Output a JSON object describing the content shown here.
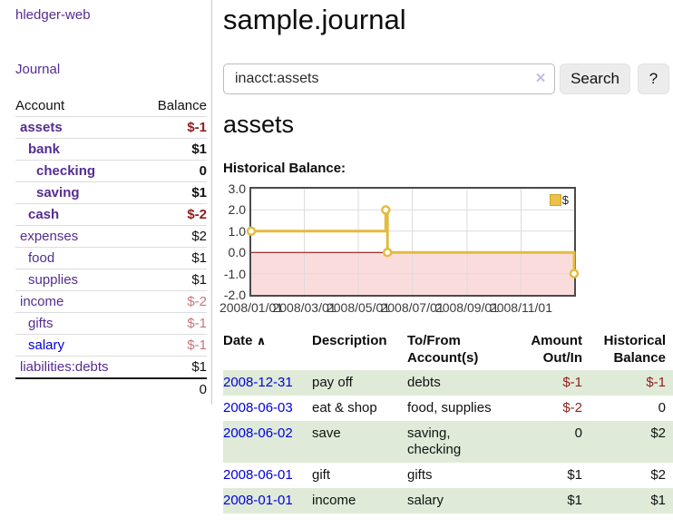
{
  "app": {
    "brand": "hledger-web",
    "nav_journal": "Journal"
  },
  "sidebar": {
    "header": {
      "account": "Account",
      "balance": "Balance"
    },
    "accounts": [
      {
        "name": "assets",
        "balance": "$-1"
      },
      {
        "name": "bank",
        "balance": "$1"
      },
      {
        "name": "checking",
        "balance": "0"
      },
      {
        "name": "saving",
        "balance": "$1"
      },
      {
        "name": "cash",
        "balance": "$-2"
      },
      {
        "name": "expenses",
        "balance": "$2"
      },
      {
        "name": "food",
        "balance": "$1"
      },
      {
        "name": "supplies",
        "balance": "$1"
      },
      {
        "name": "income",
        "balance": "$-2"
      },
      {
        "name": "gifts",
        "balance": "$-1"
      },
      {
        "name": "salary",
        "balance": "$-1"
      },
      {
        "name": "liabilities:debts",
        "balance": "$1"
      }
    ],
    "total": "0"
  },
  "header": {
    "title": "sample.journal"
  },
  "search": {
    "value": "inacct:assets",
    "clear_icon": "×",
    "button_label": "Search",
    "help_label": "?"
  },
  "main": {
    "account_title": "assets",
    "chart_title": "Historical Balance:"
  },
  "chart_data": {
    "type": "line",
    "step": true,
    "title": "Historical Balance:",
    "x_range": [
      "2008-01-01",
      "2008-12-31"
    ],
    "ylim": [
      -2,
      3
    ],
    "yticks": [
      3.0,
      2.0,
      1.0,
      0.0,
      -1.0,
      -2.0
    ],
    "ytick_labels": [
      "3.0",
      "2.0",
      "1.0",
      "0.0",
      "-1.0",
      "-2.0"
    ],
    "xticks": [
      "2008-01-01",
      "2008-03-01",
      "2008-05-01",
      "2008-07-01",
      "2008-09-01",
      "2008-11-01"
    ],
    "xtick_labels": [
      "2008/01/01",
      "2008/03/01",
      "2008/05/01",
      "2008/07/01",
      "2008/09/01",
      "2008/11/01"
    ],
    "grid": true,
    "legend_position": "top-right",
    "negative_region_color": "#fbdcdc",
    "zero_line_color": "#8b0000",
    "series": [
      {
        "name": "$",
        "color": "#e3bc40",
        "points": [
          [
            "2008-01-01",
            1
          ],
          [
            "2008-06-01",
            2
          ],
          [
            "2008-06-03",
            0
          ],
          [
            "2008-12-31",
            -1
          ]
        ]
      }
    ]
  },
  "register": {
    "columns": [
      "Date",
      "Description",
      "To/From Account(s)",
      "Amount Out/In",
      "Historical Balance"
    ],
    "sort_icon": "∧",
    "rows": [
      {
        "date": "2008-12-31",
        "description": "pay off",
        "accounts": "debts",
        "accounts2": "",
        "amount": "$-1",
        "balance": "$-1"
      },
      {
        "date": "2008-06-03",
        "description": "eat & shop",
        "accounts": "food, supplies",
        "accounts2": "",
        "amount": "$-2",
        "balance": "0"
      },
      {
        "date": "2008-06-02",
        "description": "save",
        "accounts": "saving,",
        "accounts2": "checking",
        "amount": "0",
        "balance": "$2"
      },
      {
        "date": "2008-06-01",
        "description": "gift",
        "accounts": "gifts",
        "accounts2": "",
        "amount": "$1",
        "balance": "$2"
      },
      {
        "date": "2008-01-01",
        "description": "income",
        "accounts": "salary",
        "accounts2": "",
        "amount": "$1",
        "balance": "$1"
      }
    ]
  },
  "colors": {
    "link_purple": "#552d90",
    "link_blue": "#0000dd",
    "negative_strong": "#8f1d1d",
    "negative_faded": "#c5787d",
    "row_green": "#dfebd8",
    "series_yellow": "#e3bc40"
  }
}
